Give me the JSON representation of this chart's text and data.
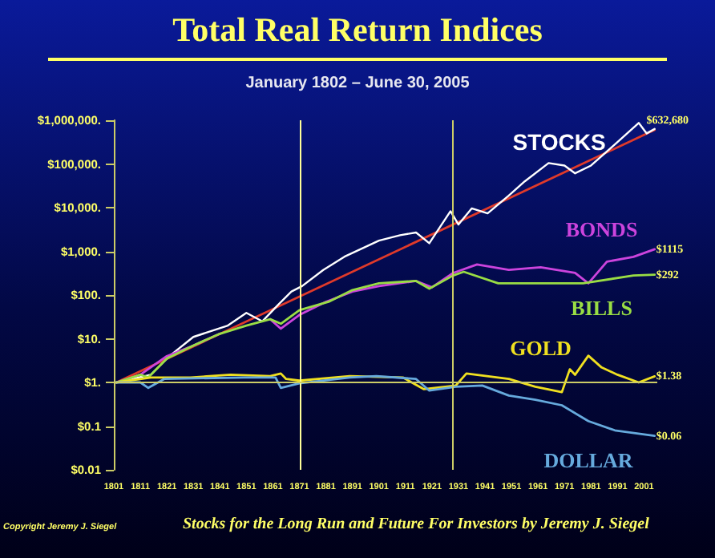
{
  "chart_data": {
    "type": "line",
    "title": "Total Real Return Indices",
    "subtitle": "January 1802 – June 30, 2005",
    "annotations": [
      "Copyright Jeremy J. Siegel",
      "Stocks for the Long Run and Future For Investors by Jeremy J. Siegel"
    ],
    "log": true,
    "grid": false,
    "legend": false,
    "marker": "none",
    "line_style": "solid",
    "xlim": [
      1801,
      2006
    ],
    "xticks": [
      1801,
      1811,
      1821,
      1831,
      1841,
      1851,
      1861,
      1871,
      1881,
      1891,
      1901,
      1911,
      1921,
      1931,
      1941,
      1951,
      1961,
      1971,
      1981,
      1991,
      2001
    ],
    "ylim": [
      0.01,
      1000000
    ],
    "yticks": [
      {
        "value": 0.01,
        "label": "$0.01"
      },
      {
        "value": 0.1,
        "label": "$0.1"
      },
      {
        "value": 1,
        "label": "$1."
      },
      {
        "value": 10,
        "label": "$10."
      },
      {
        "value": 100,
        "label": "$100."
      },
      {
        "value": 1000,
        "label": "$1,000."
      },
      {
        "value": 10000,
        "label": "$10,000."
      },
      {
        "value": 100000,
        "label": "$100,000."
      },
      {
        "value": 1000000,
        "label": "$1,000,000."
      }
    ],
    "ref_lines": [
      {
        "axis": "x",
        "value": 1871,
        "color": "#ffff99"
      },
      {
        "axis": "x",
        "value": 1929,
        "color": "#cccc66"
      },
      {
        "axis": "y",
        "value": 1,
        "color": "#cccc66"
      }
    ],
    "series": [
      {
        "name": "STOCKS",
        "color": "#ffffff",
        "x": [
          1802,
          1815,
          1822,
          1831,
          1844,
          1851,
          1857,
          1863,
          1868,
          1872,
          1880,
          1888,
          1901,
          1909,
          1915,
          1920,
          1928,
          1931,
          1936,
          1942,
          1950,
          1956,
          1965,
          1971,
          1975,
          1981,
          1990,
          1999,
          2002,
          2005
        ],
        "values": [
          1,
          1.5,
          4,
          11,
          20,
          39,
          25,
          60,
          120,
          160,
          375,
          755,
          1760,
          2340,
          2700,
          1530,
          8300,
          4100,
          9600,
          7400,
          19000,
          40000,
          105000,
          92000,
          61000,
          92000,
          280000,
          870000,
          500000,
          632680
        ],
        "value_labels": [
          null,
          null,
          null,
          null,
          null,
          null,
          null,
          null,
          null,
          null,
          null,
          null,
          null,
          null,
          null,
          null,
          null,
          null,
          null,
          null,
          null,
          null,
          null,
          null,
          null,
          null,
          null,
          null,
          null,
          "$632,680"
        ]
      },
      {
        "name": "BONDS",
        "color": "#cc44dd",
        "x": [
          1802,
          1811,
          1821,
          1831,
          1841,
          1851,
          1860,
          1864,
          1871,
          1881,
          1891,
          1901,
          1915,
          1921,
          1929,
          1938,
          1950,
          1962,
          1975,
          1980,
          1987,
          1997,
          2005
        ],
        "values": [
          1,
          1.5,
          4,
          7,
          13,
          null,
          28,
          17,
          35,
          70,
          120,
          160,
          210,
          150,
          320,
          500,
          375,
          430,
          320,
          185,
          580,
          750,
          1115
        ],
        "value_labels": [
          null,
          null,
          null,
          null,
          null,
          null,
          null,
          null,
          null,
          null,
          null,
          null,
          null,
          null,
          null,
          null,
          null,
          null,
          null,
          null,
          null,
          null,
          "$1115"
        ]
      },
      {
        "name": "BILLS",
        "color": "#99dd44",
        "x": [
          1802,
          1811,
          1814,
          1821,
          1831,
          1841,
          1851,
          1860,
          1864,
          1871,
          1882,
          1891,
          1901,
          1915,
          1920,
          1929,
          1933,
          1946,
          1962,
          1978,
          1997,
          2005
        ],
        "values": [
          1,
          1.5,
          1.3,
          3.5,
          7,
          13,
          20,
          28,
          22,
          45,
          70,
          130,
          185,
          210,
          140,
          280,
          340,
          185,
          185,
          185,
          280,
          292
        ],
        "value_labels": [
          null,
          null,
          null,
          null,
          null,
          null,
          null,
          null,
          null,
          null,
          null,
          null,
          null,
          null,
          null,
          null,
          null,
          null,
          null,
          null,
          null,
          "$292"
        ]
      },
      {
        "name": "GOLD",
        "color": "#f0e020",
        "x": [
          1802,
          1815,
          1830,
          1845,
          1860,
          1864,
          1866,
          1871,
          1890,
          1910,
          1918,
          1930,
          1934,
          1950,
          1960,
          1970,
          1973,
          1975,
          1980,
          1985,
          1991,
          1999,
          2005
        ],
        "values": [
          1,
          1.3,
          1.3,
          1.5,
          1.4,
          1.6,
          1.2,
          1.1,
          1.4,
          1.3,
          0.7,
          0.85,
          1.6,
          1.2,
          0.8,
          0.6,
          2,
          1.5,
          4.1,
          2.2,
          1.5,
          1,
          1.38
        ],
        "value_labels": [
          null,
          null,
          null,
          null,
          null,
          null,
          null,
          null,
          null,
          null,
          null,
          null,
          null,
          null,
          null,
          null,
          null,
          null,
          null,
          null,
          null,
          null,
          "$1.38"
        ]
      },
      {
        "name": "DOLLAR",
        "color": "#66aadd",
        "x": [
          1802,
          1811,
          1814,
          1820,
          1850,
          1862,
          1864,
          1871,
          1890,
          1900,
          1915,
          1920,
          1930,
          1940,
          1950,
          1960,
          1970,
          1980,
          1990,
          2005
        ],
        "values": [
          1,
          1,
          0.75,
          1.2,
          1.3,
          1.3,
          0.75,
          0.95,
          1.3,
          1.4,
          1.2,
          0.65,
          0.8,
          0.85,
          0.5,
          0.4,
          0.3,
          0.13,
          0.08,
          0.06
        ],
        "value_labels": [
          null,
          null,
          null,
          null,
          null,
          null,
          null,
          null,
          null,
          null,
          null,
          null,
          null,
          null,
          null,
          null,
          null,
          null,
          null,
          "$0.06"
        ]
      },
      {
        "type": "line",
        "color": "#e03a2a",
        "x": [
          1802,
          2005
        ],
        "values": [
          1,
          600000
        ]
      }
    ]
  }
}
